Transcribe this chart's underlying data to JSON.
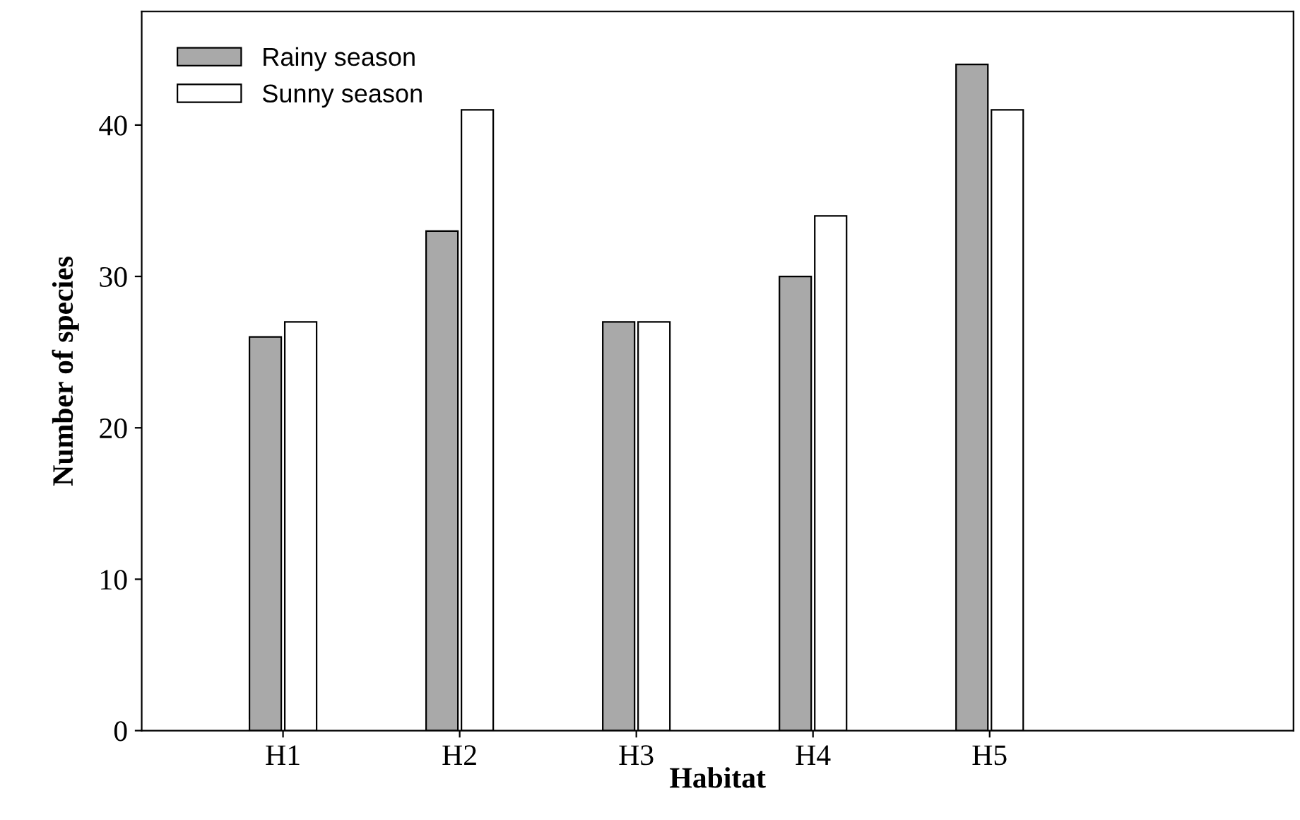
{
  "chart_data": {
    "type": "bar",
    "xlabel": "Habitat",
    "ylabel": "Number of species",
    "categories": [
      "H1",
      "H2",
      "H3",
      "H4",
      "H5"
    ],
    "series": [
      {
        "name": "Rainy season",
        "color": "#a9a9a9",
        "values": [
          26,
          33,
          27,
          30,
          44
        ]
      },
      {
        "name": "Sunny season",
        "color": "#ffffff",
        "values": [
          27,
          41,
          27,
          34,
          41
        ]
      }
    ],
    "ylim": [
      0,
      47.5
    ],
    "yticks": [
      0,
      10,
      20,
      30,
      40
    ],
    "grid": false,
    "legend": "top left"
  }
}
